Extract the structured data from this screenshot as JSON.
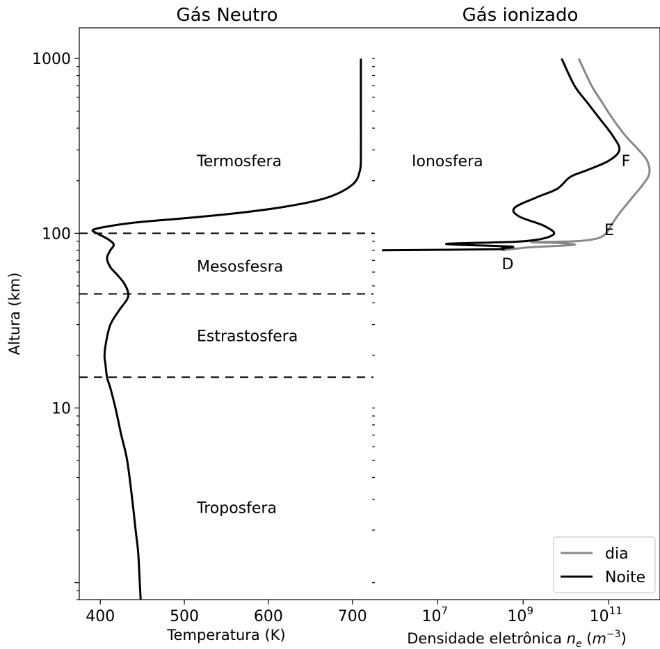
{
  "chart_data": {
    "type": "line",
    "titles": {
      "left": "Gás Neutro",
      "right": "Gás ionizado"
    },
    "ylabel": "Altura (km)",
    "yscale": "log",
    "ylim": [
      0.8,
      1500
    ],
    "yticks": [
      10,
      100,
      1000
    ],
    "yticklabels": [
      "10",
      "100",
      "1000"
    ],
    "left_panel": {
      "xlabel": "Temperatura (K)",
      "xlim": [
        375,
        725
      ],
      "xticks": [
        400,
        500,
        600,
        700
      ],
      "xticklabels": [
        "400",
        "500",
        "600",
        "700"
      ],
      "temperature_profile": {
        "temperature": [
          448,
          447,
          445,
          442,
          438,
          432,
          425,
          418,
          412,
          408,
          406,
          405,
          407,
          412,
          422,
          432,
          433,
          428,
          420,
          412,
          408,
          412,
          416,
          410,
          396,
          391,
          402,
          440,
          500,
          560,
          620,
          670,
          700,
          709,
          710,
          710,
          710
        ],
        "altitude_km": [
          0.8,
          1,
          1.5,
          2,
          3,
          5,
          7,
          10,
          13,
          15,
          18,
          20,
          24,
          30,
          36,
          42,
          46,
          52,
          58,
          64,
          72,
          80,
          86,
          92,
          100,
          104,
          108,
          115,
          122,
          130,
          142,
          160,
          190,
          230,
          300,
          500,
          1000
        ]
      },
      "layer_boundaries_km": [
        100,
        45,
        15
      ],
      "layers": [
        {
          "label": "Termosfera",
          "altitude_km": 260
        },
        {
          "label": "Mesosfesra",
          "altitude_km": 65
        },
        {
          "label": "Estrastosfera",
          "altitude_km": 26
        },
        {
          "label": "Troposfera",
          "altitude_km": 2.7
        }
      ]
    },
    "right_panel": {
      "xlabel_prefix": "Densidade eletrônica ",
      "xlabel_symbol": "n",
      "xlabel_sub": "e",
      "xlabel_unit_open": " (",
      "xlabel_unit": "m",
      "xlabel_exp": "−3",
      "xlabel_close": ")",
      "xscale": "log",
      "xlim_log10": [
        5.5,
        12.2
      ],
      "ticks": [
        {
          "base": "10",
          "exp": "7",
          "log10": 7
        },
        {
          "base": "10",
          "exp": "9",
          "log10": 9
        },
        {
          "base": "10",
          "exp": "11",
          "log10": 11
        }
      ],
      "region_label": {
        "text": "Ionosfera",
        "altitude_km": 260
      },
      "series": [
        {
          "name": "dia",
          "color": "#888888",
          "log10_density": [
            8.5,
            8.9,
            9.1,
            9.5,
            10.2,
            9.8,
            9.2,
            10.2,
            10.7,
            10.9,
            11.0,
            11.1,
            11.25,
            11.55,
            11.8,
            11.95,
            11.9,
            11.7,
            11.4,
            11.1,
            10.85,
            10.6,
            10.3
          ],
          "altitude_km": [
            80,
            82,
            83,
            84,
            86,
            88,
            89,
            90,
            93,
            98,
            105,
            115,
            130,
            160,
            190,
            220,
            260,
            300,
            360,
            450,
            560,
            700,
            1000
          ]
        },
        {
          "name": "Noite",
          "color": "#000000",
          "log10_density": [
            5.7,
            8.3,
            8.5,
            8.7,
            7.2,
            9.0,
            9.7,
            9.5,
            8.9,
            8.8,
            9.3,
            9.8,
            10.1,
            10.5,
            11.0,
            11.25,
            11.1,
            10.8,
            10.5,
            10.2,
            9.9
          ],
          "altitude_km": [
            80,
            81,
            82,
            84,
            87,
            90,
            98,
            110,
            125,
            140,
            160,
            180,
            210,
            230,
            260,
            300,
            360,
            450,
            560,
            700,
            1000
          ]
        }
      ],
      "layer_labels": [
        {
          "text": "F",
          "log10": 11.3,
          "altitude_km": 260
        },
        {
          "text": "E",
          "log10": 10.9,
          "altitude_km": 105
        },
        {
          "text": "D",
          "log10": 8.5,
          "altitude_km": 67
        }
      ],
      "legend": {
        "position": "bottom-right",
        "entries": [
          "dia",
          "Noite"
        ]
      }
    }
  }
}
